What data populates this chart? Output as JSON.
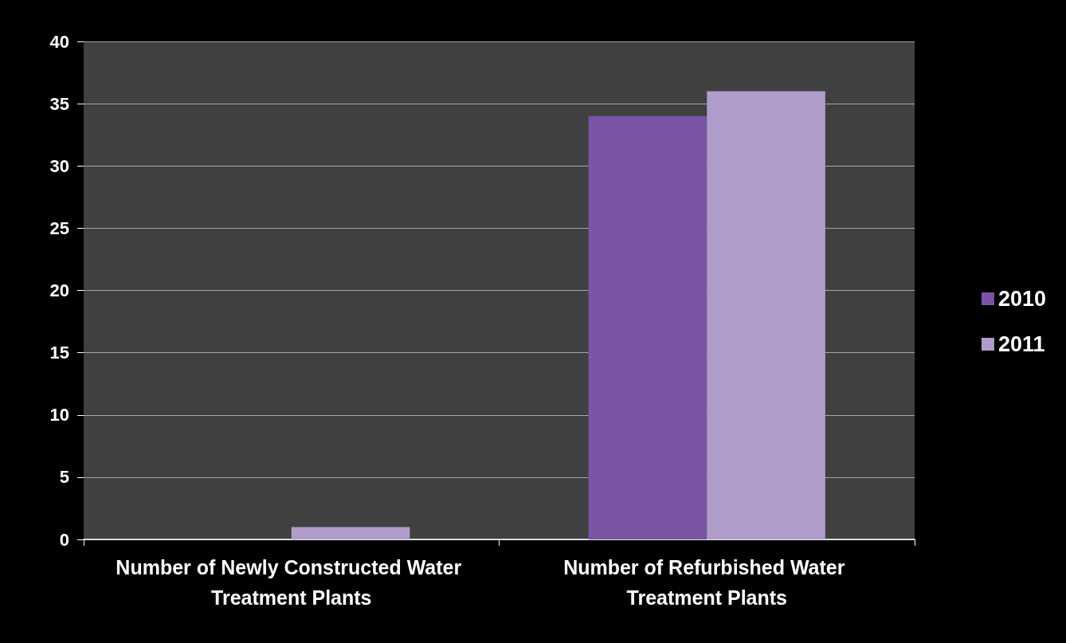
{
  "chart_data": {
    "type": "bar",
    "categories": [
      "Number of Newly Constructed Water Treatment Plants",
      "Number of Refurbished Water Treatment Plants"
    ],
    "series": [
      {
        "name": "2010",
        "color": "#7a55a5",
        "values": [
          0,
          34
        ]
      },
      {
        "name": "2011",
        "color": "#b09ccb",
        "values": [
          1,
          36
        ]
      }
    ],
    "ylim": [
      0,
      40
    ],
    "yticks": [
      0,
      5,
      10,
      15,
      20,
      25,
      30,
      35,
      40
    ],
    "grid": "y",
    "legend": "right"
  }
}
